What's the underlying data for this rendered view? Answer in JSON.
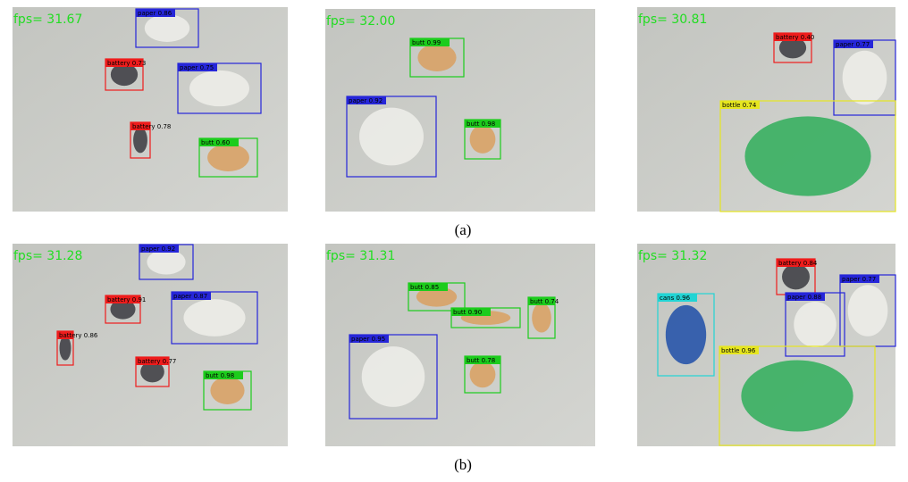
{
  "panels": [
    {
      "fps": "fps= 31.67",
      "boxes": [
        {
          "label": "paper 0.86",
          "color": "#2626d9"
        },
        {
          "label": "battery 0.73",
          "color": "#ee1c1c"
        },
        {
          "label": "paper 0.75",
          "color": "#2626d9"
        },
        {
          "label": "battery 0.78",
          "color": "#ee1c1c"
        },
        {
          "label": "butt 0.60",
          "color": "#1ccc1c"
        }
      ]
    },
    {
      "fps": "fps= 32.00",
      "boxes": [
        {
          "label": "butt 0.99",
          "color": "#1ccc1c"
        },
        {
          "label": "paper 0.92",
          "color": "#2626d9"
        },
        {
          "label": "butt 0.98",
          "color": "#1ccc1c"
        }
      ]
    },
    {
      "fps": "fps= 30.81",
      "boxes": [
        {
          "label": "battery 0.40",
          "color": "#ee1c1c"
        },
        {
          "label": "paper 0.77",
          "color": "#2626d9"
        },
        {
          "label": "bottle 0.74",
          "color": "#e6e620"
        }
      ]
    },
    {
      "fps": "fps= 31.28",
      "boxes": [
        {
          "label": "paper 0.92",
          "color": "#2626d9"
        },
        {
          "label": "battery 0.91",
          "color": "#ee1c1c"
        },
        {
          "label": "paper 0.87",
          "color": "#2626d9"
        },
        {
          "label": "battery 0.86",
          "color": "#ee1c1c"
        },
        {
          "label": "battery 0.77",
          "color": "#ee1c1c"
        },
        {
          "label": "butt 0.98",
          "color": "#1ccc1c"
        }
      ]
    },
    {
      "fps": "fps= 31.31",
      "boxes": [
        {
          "label": "butt 0.85",
          "color": "#1ccc1c"
        },
        {
          "label": "butt 0.90",
          "color": "#1ccc1c"
        },
        {
          "label": "butt 0.74",
          "color": "#1ccc1c"
        },
        {
          "label": "paper 0.95",
          "color": "#2626d9"
        },
        {
          "label": "butt 0.78",
          "color": "#1ccc1c"
        }
      ]
    },
    {
      "fps": "fps= 31.32",
      "boxes": [
        {
          "label": "battery 0.84",
          "color": "#ee1c1c"
        },
        {
          "label": "cans 0.96",
          "color": "#22d4d4"
        },
        {
          "label": "paper 0.88",
          "color": "#2626d9"
        },
        {
          "label": "paper 0.77",
          "color": "#2626d9"
        },
        {
          "label": "bottle 0.96",
          "color": "#e6e620"
        }
      ]
    }
  ],
  "captions": [
    "(a)",
    "(b)"
  ]
}
